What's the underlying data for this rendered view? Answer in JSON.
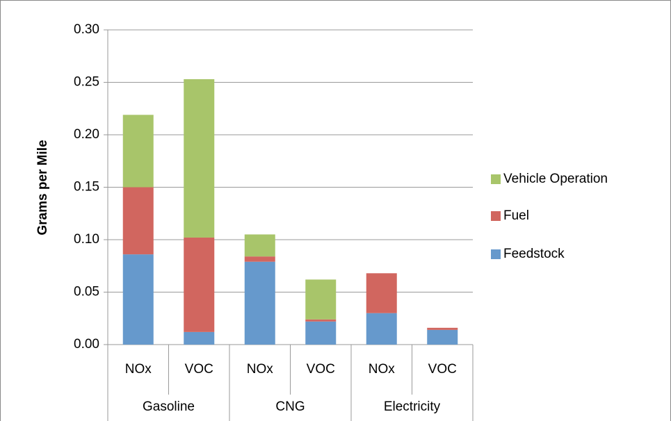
{
  "chart_data": {
    "type": "stacked_bar",
    "ylabel": "Grams per Mile",
    "categories": [
      "NOx",
      "VOC",
      "NOx",
      "VOC",
      "NOx",
      "VOC"
    ],
    "category_groups": [
      "Gasoline",
      "CNG",
      "Electricity"
    ],
    "series": [
      {
        "name": "Feedstock",
        "color": "#6699cc",
        "values": [
          0.086,
          0.012,
          0.079,
          0.022,
          0.03,
          0.014
        ]
      },
      {
        "name": "Fuel",
        "color": "#d1665f",
        "values": [
          0.064,
          0.09,
          0.005,
          0.002,
          0.038,
          0.002
        ]
      },
      {
        "name": "Vehicle Operation",
        "color": "#a8c56a",
        "values": [
          0.069,
          0.151,
          0.021,
          0.038,
          0,
          0
        ]
      }
    ],
    "ylim": [
      0,
      0.3
    ],
    "yticks": [
      {
        "value": 0,
        "label": "0.00"
      },
      {
        "value": 0.05,
        "label": "0.05"
      },
      {
        "value": 0.1,
        "label": "0.10"
      },
      {
        "value": 0.15,
        "label": "0.15"
      },
      {
        "value": 0.2,
        "label": "0.20"
      },
      {
        "value": 0.25,
        "label": "0.25"
      },
      {
        "value": 0.3,
        "label": "0.30"
      }
    ],
    "grid": true,
    "legend": "right"
  }
}
